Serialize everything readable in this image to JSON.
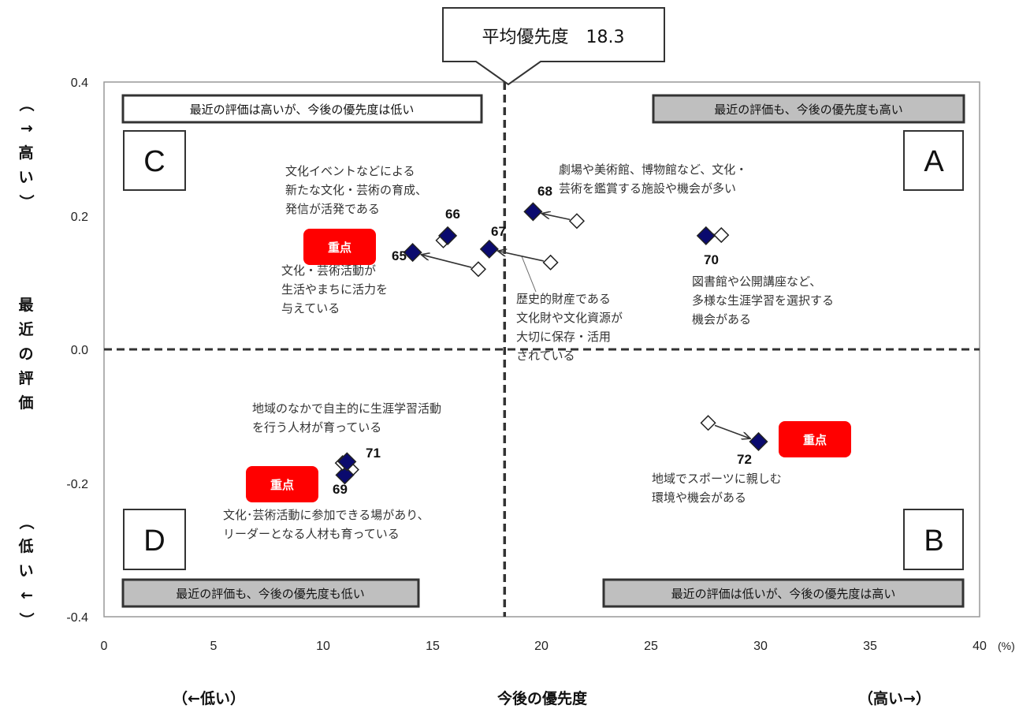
{
  "chart_data": {
    "type": "scatter",
    "xlabel": "今後の優先度",
    "xlabel_low": "（←低い）",
    "xlabel_high": "（高い→）",
    "x_unit": "(%)",
    "ylabel": "最近の評価",
    "ylabel_high": "（↑高い）",
    "ylabel_low": "（低い↓）",
    "xlim": [
      0,
      40
    ],
    "ylim": [
      -0.4,
      0.4
    ],
    "x_ticks": [
      "0",
      "5",
      "10",
      "15",
      "20",
      "25",
      "30",
      "35",
      "40"
    ],
    "y_ticks": [
      "0.4",
      "0.2",
      "0.0",
      "-0.2",
      "-0.4"
    ],
    "average_priority_label": "平均優先度　18.3",
    "average_priority": 18.3,
    "quadrants": {
      "A": {
        "letter": "A",
        "label": "最近の評価も、今後の優先度も高い"
      },
      "B": {
        "letter": "B",
        "label": "最近の評価は低いが、今後の優先度は高い"
      },
      "C": {
        "letter": "C",
        "label": "最近の評価は高いが、今後の優先度は低い"
      },
      "D": {
        "letter": "D",
        "label": "最近の評価も、今後の優先度も低い"
      }
    },
    "juten_label": "重点",
    "legend": {
      "current": "filled diamond",
      "previous": "hollow diamond"
    },
    "colors": {
      "current": "#0a0a6e",
      "previous": "#ffffff",
      "juten": "#ff0000",
      "quadrant_box": "#bfbfbf"
    },
    "items": [
      {
        "id": "65",
        "current": [
          14.1,
          0.145
        ],
        "previous": [
          17.1,
          0.12
        ],
        "juten": true,
        "label": [
          "文化・芸術活動が",
          "生活やまちに活力を",
          "与えている"
        ]
      },
      {
        "id": "66",
        "current": [
          15.7,
          0.17
        ],
        "previous": [
          15.5,
          0.163
        ],
        "juten": false,
        "label": [
          "文化イベントなどによる",
          "新たな文化・芸術の育成、",
          "発信が活発である"
        ]
      },
      {
        "id": "67",
        "current": [
          17.6,
          0.15
        ],
        "previous": [
          20.4,
          0.13
        ],
        "juten": false,
        "label": [
          "歴史的財産である",
          "文化財や文化資源が",
          "大切に保存・活用",
          "されている"
        ]
      },
      {
        "id": "68",
        "current": [
          19.6,
          0.206
        ],
        "previous": [
          21.6,
          0.192
        ],
        "juten": false,
        "label": [
          "劇場や美術館、博物館など、文化・",
          "芸術を鑑賞する施設や機会が多い"
        ]
      },
      {
        "id": "69",
        "current": [
          11.0,
          -0.188
        ],
        "previous": [
          11.3,
          -0.18
        ],
        "juten": true,
        "label": [
          "文化･芸術活動に参加できる場があり、",
          "リーダーとなる人材も育っている"
        ]
      },
      {
        "id": "70",
        "current": [
          27.5,
          0.17
        ],
        "previous": [
          28.2,
          0.171
        ],
        "juten": false,
        "label": [
          "図書館や公開講座など、",
          "多様な生涯学習を選択する",
          "機会がある"
        ]
      },
      {
        "id": "71",
        "current": [
          11.1,
          -0.168
        ],
        "previous": [
          10.9,
          -0.17
        ],
        "juten": false,
        "label": [
          "地域のなかで自主的に生涯学習活動",
          "を行う人材が育っている"
        ]
      },
      {
        "id": "72",
        "current": [
          29.9,
          -0.138
        ],
        "previous": [
          27.6,
          -0.11
        ],
        "juten": true,
        "label": [
          "地域でスポーツに親しむ",
          "環境や機会がある"
        ]
      }
    ]
  }
}
